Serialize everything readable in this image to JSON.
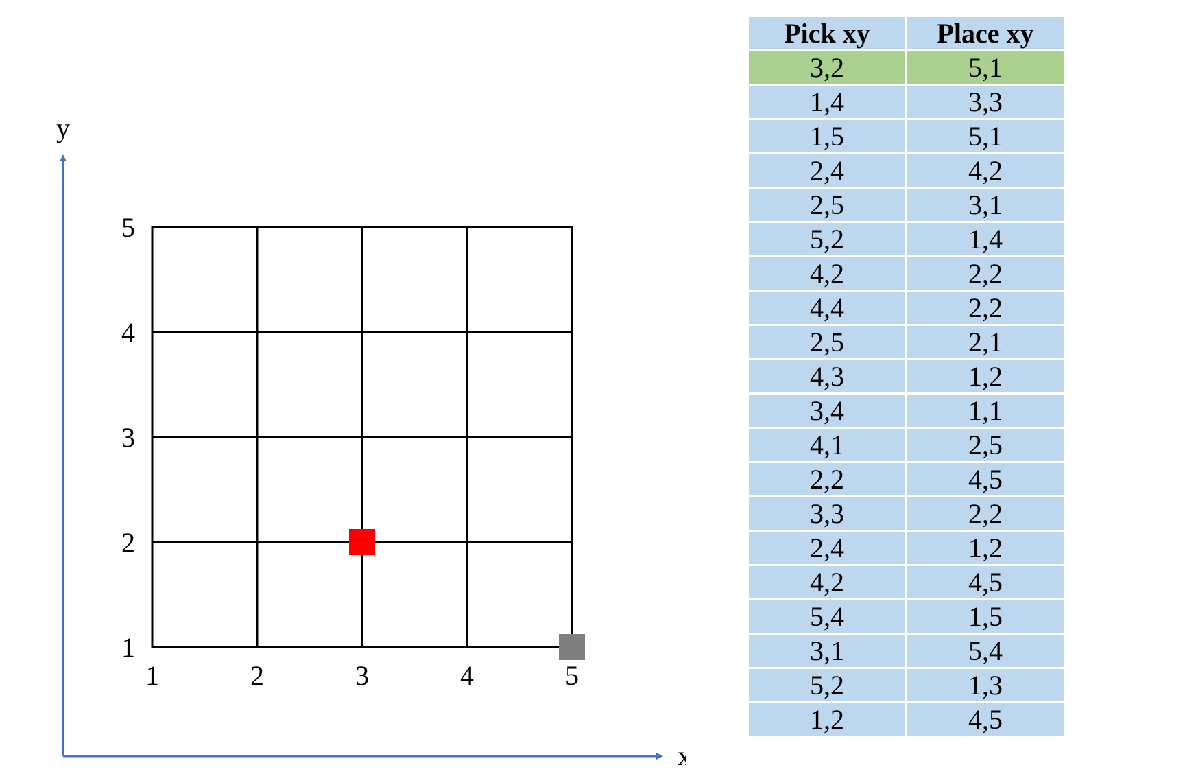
{
  "axes": {
    "x_label": "x",
    "y_label": "y",
    "axis_color": "#4472c4"
  },
  "grid": {
    "x_ticks": [
      "1",
      "2",
      "3",
      "4",
      "5"
    ],
    "y_ticks": [
      "1",
      "2",
      "3",
      "4",
      "5"
    ],
    "line_color": "#000000"
  },
  "markers": [
    {
      "name": "current-pick-marker",
      "x": 3,
      "y": 2,
      "color": "#ff0000"
    },
    {
      "name": "current-place-marker",
      "x": 5,
      "y": 1,
      "color": "#7f7f7f"
    }
  ],
  "table": {
    "headers": [
      "Pick  xy",
      "Place  xy"
    ],
    "header_color": "#bdd7ee",
    "row_color": "#bdd7ee",
    "highlight_color": "#a9d08e",
    "highlighted_row": 0,
    "rows": [
      [
        "3,2",
        "5,1"
      ],
      [
        "1,4",
        "3,3"
      ],
      [
        "1,5",
        "5,1"
      ],
      [
        "2,4",
        "4,2"
      ],
      [
        "2,5",
        "3,1"
      ],
      [
        "5,2",
        "1,4"
      ],
      [
        "4,2",
        "2,2"
      ],
      [
        "4,4",
        "2,2"
      ],
      [
        "2,5",
        "2,1"
      ],
      [
        "4,3",
        "1,2"
      ],
      [
        "3,4",
        "1,1"
      ],
      [
        "4,1",
        "2,5"
      ],
      [
        "2,2",
        "4,5"
      ],
      [
        "3,3",
        "2,2"
      ],
      [
        "2,4",
        "1,2"
      ],
      [
        "4,2",
        "4,5"
      ],
      [
        "5,4",
        "1,5"
      ],
      [
        "3,1",
        "5,4"
      ],
      [
        "5,2",
        "1,3"
      ],
      [
        "1,2",
        "4,5"
      ]
    ]
  }
}
